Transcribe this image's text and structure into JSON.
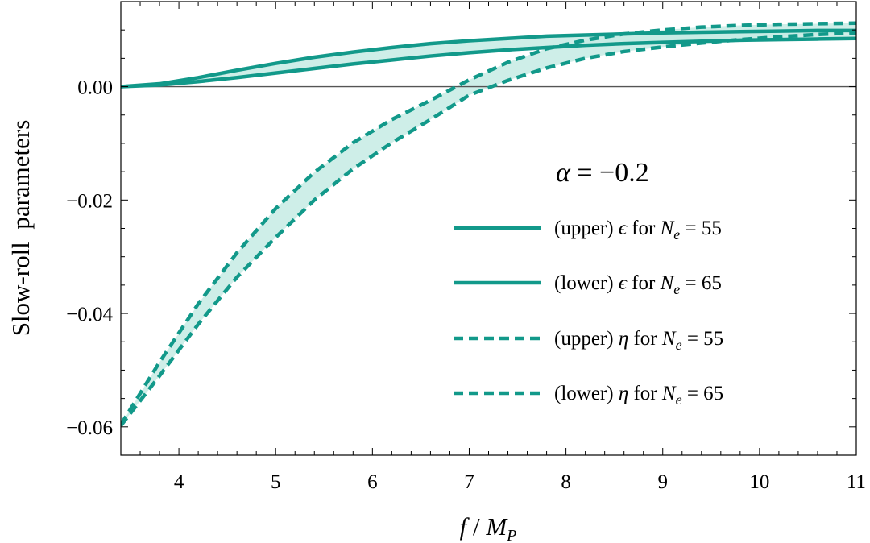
{
  "chart_data": {
    "type": "line",
    "title": "",
    "xlabel": "f / M_P",
    "xlabel_parts": {
      "f": "f",
      "slash": " / ",
      "M": "M",
      "P": "P"
    },
    "ylabel": "Slow-roll  parameters",
    "xlim": [
      3.4,
      11
    ],
    "ylim": [
      -0.065,
      0.015
    ],
    "x_ticks": [
      4,
      5,
      6,
      7,
      8,
      9,
      10,
      11
    ],
    "x_tick_labels": [
      "4",
      "5",
      "6",
      "7",
      "8",
      "9",
      "10",
      "11"
    ],
    "y_ticks": [
      0.0,
      -0.02,
      -0.04,
      -0.06
    ],
    "y_tick_labels": [
      "0.00",
      "−0.02",
      "−0.04",
      "−0.06"
    ],
    "grid": false,
    "zero_line": true,
    "color": "#12998a",
    "band_color": "#c6ebe4",
    "annotation": "α = −0.2",
    "annotation_parts": {
      "alpha": "α",
      "eq": " = −0.2"
    },
    "legend_placement": "right",
    "x": [
      3.4,
      3.8,
      4.2,
      4.6,
      5.0,
      5.4,
      5.8,
      6.2,
      6.6,
      7.0,
      7.4,
      7.8,
      8.2,
      8.6,
      9.0,
      9.4,
      9.8,
      10.2,
      10.6,
      11.0
    ],
    "series": [
      {
        "label": "(upper) ϵ for N_e = 55",
        "style": "solid",
        "values": [
          0.0,
          0.0005,
          0.0016,
          0.0029,
          0.0041,
          0.0052,
          0.0061,
          0.0069,
          0.0076,
          0.0081,
          0.0085,
          0.0089,
          0.0091,
          0.0093,
          0.0095,
          0.0096,
          0.0097,
          0.0098,
          0.0099,
          0.0099
        ]
      },
      {
        "label": "(lower) ϵ for N_e = 65",
        "style": "solid",
        "values": [
          0.0,
          0.0003,
          0.0009,
          0.0016,
          0.0024,
          0.0032,
          0.004,
          0.0047,
          0.0054,
          0.006,
          0.0065,
          0.0069,
          0.0073,
          0.0076,
          0.0078,
          0.008,
          0.0082,
          0.0083,
          0.0084,
          0.0085
        ]
      },
      {
        "label": "(upper) η for N_e = 55",
        "style": "dashed",
        "values": [
          -0.0596,
          -0.0486,
          -0.0383,
          -0.0293,
          -0.0215,
          -0.0151,
          -0.0099,
          -0.0058,
          -0.0024,
          0.0012,
          0.0043,
          0.0067,
          0.0082,
          0.0093,
          0.01,
          0.0105,
          0.0108,
          0.011,
          0.0111,
          0.0112
        ]
      },
      {
        "label": "(lower) η for N_e = 65",
        "style": "dashed",
        "values": [
          -0.0598,
          -0.051,
          -0.0419,
          -0.0336,
          -0.0266,
          -0.02,
          -0.0145,
          -0.0099,
          -0.0058,
          -0.0015,
          0.0011,
          0.0033,
          0.005,
          0.0062,
          0.007,
          0.0077,
          0.0083,
          0.0088,
          0.0092,
          0.0095
        ]
      }
    ],
    "legend": [
      {
        "pre": "(upper) ",
        "sym": "ϵ",
        "mid": " for ",
        "N": "N",
        "sub": "e",
        "post": " = 55",
        "style": "solid"
      },
      {
        "pre": "(lower) ",
        "sym": "ϵ",
        "mid": " for ",
        "N": "N",
        "sub": "e",
        "post": " = 65",
        "style": "solid"
      },
      {
        "pre": "(upper) ",
        "sym": "η",
        "mid": " for ",
        "N": "N",
        "sub": "e",
        "post": " = 55",
        "style": "dashed"
      },
      {
        "pre": "(lower) ",
        "sym": "η",
        "mid": " for ",
        "N": "N",
        "sub": "e",
        "post": " = 65",
        "style": "dashed"
      }
    ]
  }
}
